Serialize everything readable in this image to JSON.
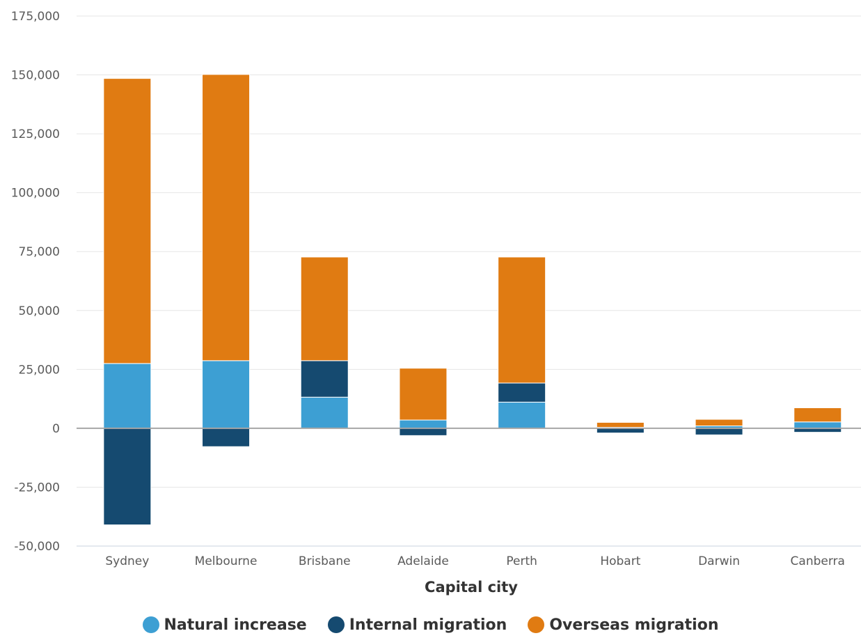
{
  "chart_data": {
    "type": "bar",
    "stacked": true,
    "categories": [
      "Sydney",
      "Melbourne",
      "Brisbane",
      "Adelaide",
      "Perth",
      "Hobart",
      "Darwin",
      "Canberra"
    ],
    "series": [
      {
        "name": "Natural increase",
        "color": "#3d9fd3",
        "values": [
          27500,
          28700,
          13200,
          3500,
          11100,
          400,
          1000,
          2700
        ]
      },
      {
        "name": "Internal migration",
        "color": "#154a70",
        "values": [
          -41000,
          -7800,
          15500,
          -3100,
          8100,
          -2000,
          -2800,
          -1700
        ]
      },
      {
        "name": "Overseas migration",
        "color": "#e07b12",
        "values": [
          121000,
          121500,
          44000,
          22000,
          53500,
          2100,
          2800,
          6000
        ]
      }
    ],
    "xlabel": "Capital city",
    "ylabel": "",
    "ylim": [
      -50000,
      175000
    ],
    "yticks": [
      -50000,
      -25000,
      0,
      25000,
      50000,
      75000,
      100000,
      125000,
      150000,
      175000
    ],
    "ytick_labels": [
      "-50,000",
      "-25,000",
      "0",
      "25,000",
      "50,000",
      "75,000",
      "100,000",
      "125,000",
      "150,000",
      "175,000"
    ],
    "grid": true,
    "legend_position": "bottom"
  }
}
